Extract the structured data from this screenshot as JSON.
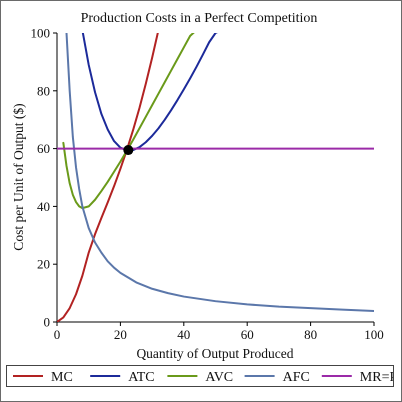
{
  "chart_data": {
    "type": "line",
    "title": "Production Costs in a Perfect Competition",
    "xlabel": "Quantity of Output Produced",
    "ylabel": "Cost per Unit of Output ($)",
    "xlim": [
      0,
      100
    ],
    "ylim": [
      0,
      100
    ],
    "xticks": [
      0,
      20,
      40,
      60,
      80,
      100
    ],
    "yticks": [
      0,
      20,
      40,
      60,
      80,
      100
    ],
    "grid": false,
    "legend_placement": "bottom",
    "series": [
      {
        "name": "MC",
        "color": "#b22222",
        "x": [
          0,
          2,
          4,
          6,
          8,
          10,
          12,
          14,
          16,
          18,
          20,
          22,
          24,
          26,
          28,
          30,
          32
        ],
        "y": [
          0,
          1.6,
          4.8,
          9.6,
          16,
          24,
          30.4,
          36,
          41.4,
          47,
          53,
          59.4,
          66.4,
          74,
          82.4,
          91.4,
          101
        ]
      },
      {
        "name": "ATC",
        "color": "#1c2a9a",
        "x": [
          8,
          10,
          12,
          14,
          16,
          18,
          20,
          22,
          24,
          26,
          28,
          30,
          32,
          34,
          36,
          38,
          40,
          42,
          44,
          46,
          48,
          50,
          52
        ],
        "y": [
          101,
          89,
          79.5,
          72,
          66.6,
          62.6,
          60.3,
          59.4,
          59.5,
          60.5,
          62.2,
          64.4,
          67,
          70,
          73.3,
          76.8,
          80.5,
          84.3,
          88.3,
          92.5,
          96.8,
          100,
          101
        ]
      },
      {
        "name": "AVC",
        "color": "#6a9a1a",
        "x": [
          2,
          3,
          4,
          5,
          6,
          7,
          8,
          10,
          12,
          14,
          16,
          18,
          20,
          22,
          24,
          26,
          28,
          30,
          32,
          34,
          36,
          38,
          40,
          42,
          44,
          46,
          48,
          50,
          52,
          54,
          56
        ],
        "y": [
          62,
          54,
          48,
          44,
          41.5,
          40,
          39.4,
          40,
          42.3,
          45.3,
          48.5,
          52,
          55.5,
          59.2,
          63,
          67,
          71,
          75,
          79,
          83,
          87,
          91,
          95,
          99,
          101,
          101,
          101,
          101,
          101,
          101,
          101
        ]
      },
      {
        "name": "AFC",
        "color": "#5b77aa",
        "x": [
          3,
          3.5,
          4,
          4.5,
          5,
          6,
          7,
          8,
          10,
          12,
          14,
          16,
          18,
          20,
          25,
          30,
          35,
          40,
          50,
          60,
          70,
          80,
          90,
          100
        ],
        "y": [
          100,
          90,
          80,
          72,
          64,
          53.5,
          46,
          40,
          32.5,
          27.5,
          24,
          21,
          18.8,
          17,
          13.7,
          11.5,
          10,
          8.8,
          7.2,
          6.1,
          5.3,
          4.8,
          4.3,
          3.8
        ]
      },
      {
        "name": "MR=P",
        "color": "#9b2aa8",
        "x": [
          0,
          100
        ],
        "y": [
          60,
          60
        ]
      }
    ],
    "annotations": [
      {
        "label": "",
        "x": 22.5,
        "y": 59.5,
        "marker": "filled-circle",
        "color": "#000000"
      }
    ]
  }
}
